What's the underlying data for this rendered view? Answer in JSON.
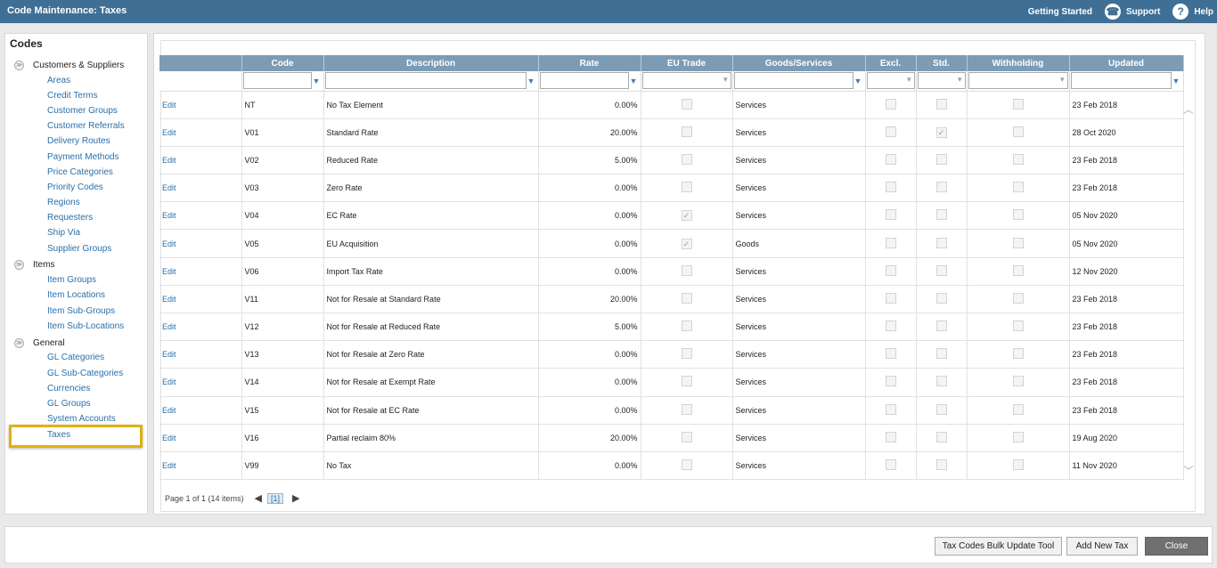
{
  "window": {
    "title": "Code Maintenance: Taxes"
  },
  "topbar": {
    "getting_started": "Getting Started",
    "support": "Support",
    "help": "Help"
  },
  "sidebar": {
    "title": "Codes",
    "groups": [
      {
        "label": "Customers & Suppliers",
        "items": [
          "Areas",
          "Credit Terms",
          "Customer Groups",
          "Customer Referrals",
          "Delivery Routes",
          "Payment Methods",
          "Price Categories",
          "Priority Codes",
          "Regions",
          "Requesters",
          "Ship Via",
          "Supplier Groups"
        ]
      },
      {
        "label": "Items",
        "items": [
          "Item Groups",
          "Item Locations",
          "Item Sub-Groups",
          "Item Sub-Locations"
        ]
      },
      {
        "label": "General",
        "items": [
          "GL Categories",
          "GL Sub-Categories",
          "Currencies",
          "GL Groups",
          "System Accounts",
          "Taxes"
        ]
      }
    ],
    "selected": "Taxes"
  },
  "grid": {
    "columns": [
      "",
      "Code",
      "Description",
      "Rate",
      "EU Trade",
      "Goods/Services",
      "Excl.",
      "Std.",
      "Withholding",
      "Updated"
    ],
    "edit_label": "Edit",
    "rows": [
      {
        "code": "NT",
        "description": "No Tax Element",
        "rate": "0.00%",
        "eu_trade": false,
        "goods_services": "Services",
        "excl": false,
        "std": false,
        "withholding": false,
        "updated": "23 Feb 2018"
      },
      {
        "code": "V01",
        "description": "Standard Rate",
        "rate": "20.00%",
        "eu_trade": false,
        "goods_services": "Services",
        "excl": false,
        "std": true,
        "withholding": false,
        "updated": "28 Oct 2020"
      },
      {
        "code": "V02",
        "description": "Reduced Rate",
        "rate": "5.00%",
        "eu_trade": false,
        "goods_services": "Services",
        "excl": false,
        "std": false,
        "withholding": false,
        "updated": "23 Feb 2018"
      },
      {
        "code": "V03",
        "description": "Zero Rate",
        "rate": "0.00%",
        "eu_trade": false,
        "goods_services": "Services",
        "excl": false,
        "std": false,
        "withholding": false,
        "updated": "23 Feb 2018"
      },
      {
        "code": "V04",
        "description": "EC Rate",
        "rate": "0.00%",
        "eu_trade": true,
        "goods_services": "Services",
        "excl": false,
        "std": false,
        "withholding": false,
        "updated": "05 Nov 2020"
      },
      {
        "code": "V05",
        "description": "EU Acquisition",
        "rate": "0.00%",
        "eu_trade": true,
        "goods_services": "Goods",
        "excl": false,
        "std": false,
        "withholding": false,
        "updated": "05 Nov 2020"
      },
      {
        "code": "V06",
        "description": "Import Tax Rate",
        "rate": "0.00%",
        "eu_trade": false,
        "goods_services": "Services",
        "excl": false,
        "std": false,
        "withholding": false,
        "updated": "12 Nov 2020"
      },
      {
        "code": "V11",
        "description": "Not for Resale at Standard Rate",
        "rate": "20.00%",
        "eu_trade": false,
        "goods_services": "Services",
        "excl": false,
        "std": false,
        "withholding": false,
        "updated": "23 Feb 2018"
      },
      {
        "code": "V12",
        "description": "Not for Resale at Reduced Rate",
        "rate": "5.00%",
        "eu_trade": false,
        "goods_services": "Services",
        "excl": false,
        "std": false,
        "withholding": false,
        "updated": "23 Feb 2018"
      },
      {
        "code": "V13",
        "description": "Not for Resale at Zero Rate",
        "rate": "0.00%",
        "eu_trade": false,
        "goods_services": "Services",
        "excl": false,
        "std": false,
        "withholding": false,
        "updated": "23 Feb 2018"
      },
      {
        "code": "V14",
        "description": "Not for Resale at Exempt Rate",
        "rate": "0.00%",
        "eu_trade": false,
        "goods_services": "Services",
        "excl": false,
        "std": false,
        "withholding": false,
        "updated": "23 Feb 2018"
      },
      {
        "code": "V15",
        "description": "Not for Resale at EC Rate",
        "rate": "0.00%",
        "eu_trade": false,
        "goods_services": "Services",
        "excl": false,
        "std": false,
        "withholding": false,
        "updated": "23 Feb 2018"
      },
      {
        "code": "V16",
        "description": "Partial reclaim 80%",
        "rate": "20.00%",
        "eu_trade": false,
        "goods_services": "Services",
        "excl": false,
        "std": false,
        "withholding": false,
        "updated": "19 Aug 2020"
      },
      {
        "code": "V99",
        "description": "No Tax",
        "rate": "0.00%",
        "eu_trade": false,
        "goods_services": "Services",
        "excl": false,
        "std": false,
        "withholding": false,
        "updated": "11 Nov 2020"
      }
    ]
  },
  "pager": {
    "summary": "Page 1 of 1 (14 items)",
    "current": "[1]"
  },
  "footer": {
    "bulk_update": "Tax Codes Bulk Update Tool",
    "add_new": "Add New Tax",
    "close": "Close"
  },
  "colors": {
    "titlebar": "#3f6f95",
    "header": "#7c9bb5",
    "link": "#2a6fa8",
    "highlight": "#e1b10c"
  }
}
